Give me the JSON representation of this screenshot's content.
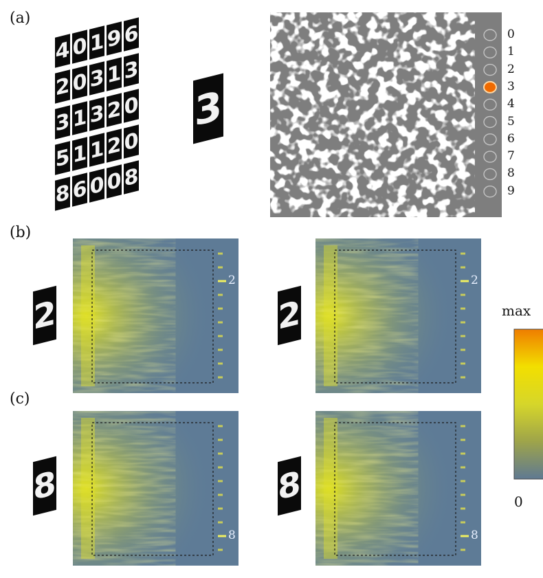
{
  "panels": {
    "a": "(a)",
    "b": "(b)",
    "c": "(c)"
  },
  "grid_digits": [
    [
      "4",
      "0",
      "1",
      "9",
      "6"
    ],
    [
      "2",
      "0",
      "3",
      "1",
      "3"
    ],
    [
      "3",
      "1",
      "3",
      "2",
      "0"
    ],
    [
      "5",
      "1",
      "1",
      "2",
      "0"
    ],
    [
      "8",
      "6",
      "0",
      "0",
      "8"
    ]
  ],
  "single_digit": "3",
  "detector_labels": [
    "0",
    "1",
    "2",
    "3",
    "4",
    "5",
    "6",
    "7",
    "8",
    "9"
  ],
  "active_detector": 3,
  "maps": [
    {
      "digit": "2",
      "label": "2",
      "row": "b"
    },
    {
      "digit": "2",
      "label": "2",
      "row": "b"
    },
    {
      "digit": "8",
      "label": "8",
      "row": "c"
    },
    {
      "digit": "8",
      "label": "8",
      "row": "c"
    }
  ],
  "colorbar": {
    "max_label": "max",
    "min_label": "0",
    "colors": [
      "#ef7d00",
      "#f2df00",
      "#d6d62a",
      "#9ea44a",
      "#5f7992"
    ]
  }
}
